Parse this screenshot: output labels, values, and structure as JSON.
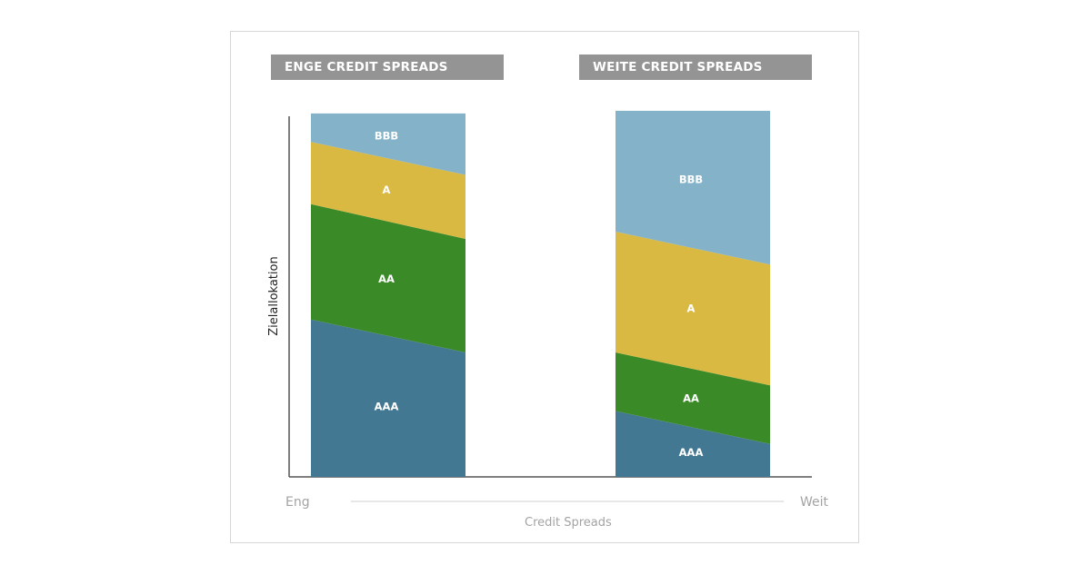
{
  "chart_data": {
    "type": "stacked-bar",
    "ylabel": "Zielallokation",
    "xlabel": "Credit Spreads",
    "x_axis_ends": {
      "left": "Eng",
      "right": "Weit"
    },
    "ylim": [
      0,
      100
    ],
    "segments": [
      "AAA",
      "AA",
      "A",
      "BBB"
    ],
    "colors": {
      "AAA": "#437893",
      "AA": "#3a8a27",
      "A": "#d9b942",
      "BBB": "#84b2c9"
    },
    "bars": [
      {
        "title": "ENGE CREDIT SPREADS",
        "segment_tops_left": [
          43,
          74.5,
          91.5,
          99.3
        ],
        "segment_tops_right": [
          34,
          65,
          82.5,
          99.3
        ]
      },
      {
        "title": "WEITE CREDIT SPREADS",
        "segment_tops_left": [
          18,
          34,
          67,
          100
        ],
        "segment_tops_right": [
          9,
          25,
          58,
          100
        ]
      }
    ]
  }
}
